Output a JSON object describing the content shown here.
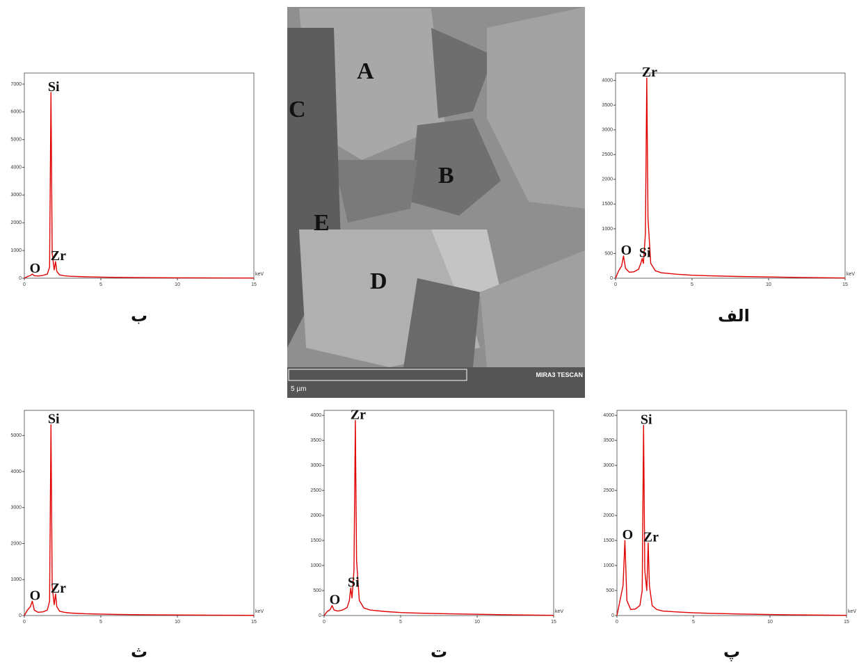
{
  "chart_data": [
    {
      "type": "line",
      "caption": "ب",
      "x_label": "keV",
      "color": "#e00000",
      "xlim": [
        0,
        15
      ],
      "xticks": [
        0,
        5,
        10,
        15
      ],
      "ylim": [
        0,
        7400
      ],
      "yticks": [
        0,
        1000,
        2000,
        3000,
        4000,
        5000,
        6000,
        7000
      ],
      "x": [
        0,
        0.2,
        0.4,
        0.52,
        0.65,
        0.9,
        1.2,
        1.5,
        1.65,
        1.74,
        1.82,
        1.95,
        2.04,
        2.12,
        2.3,
        2.6,
        3,
        4,
        5,
        6,
        8,
        10,
        12,
        15
      ],
      "values": [
        0,
        60,
        100,
        150,
        90,
        80,
        100,
        150,
        400,
        6700,
        900,
        300,
        600,
        250,
        120,
        90,
        70,
        50,
        40,
        30,
        20,
        15,
        10,
        5
      ],
      "annotations": [
        {
          "text": "O",
          "x": 0.52
        },
        {
          "text": "Si",
          "x": 1.74
        },
        {
          "text": "Zr",
          "x": 2.04
        }
      ]
    },
    {
      "type": "line",
      "caption": "الف",
      "x_label": "keV",
      "color": "#e00000",
      "xlim": [
        0,
        15
      ],
      "xticks": [
        0,
        5,
        10,
        15
      ],
      "ylim": [
        0,
        4150
      ],
      "yticks": [
        0,
        500,
        1000,
        1500,
        2000,
        2500,
        3000,
        3500,
        4000
      ],
      "x": [
        0,
        0.2,
        0.4,
        0.52,
        0.65,
        0.9,
        1.2,
        1.5,
        1.65,
        1.74,
        1.82,
        1.95,
        2.04,
        2.12,
        2.3,
        2.6,
        3,
        4,
        5,
        6,
        8,
        10,
        12,
        15
      ],
      "values": [
        0,
        150,
        250,
        450,
        200,
        120,
        130,
        180,
        300,
        400,
        300,
        900,
        4050,
        1200,
        300,
        150,
        110,
        80,
        60,
        50,
        35,
        25,
        15,
        5
      ],
      "annotations": [
        {
          "text": "O",
          "x": 0.52
        },
        {
          "text": "Si",
          "x": 1.74
        },
        {
          "text": "Zr",
          "x": 2.04
        }
      ]
    },
    {
      "type": "line",
      "caption": "ث",
      "x_label": "keV",
      "color": "#e00000",
      "xlim": [
        0,
        15
      ],
      "xticks": [
        0,
        5,
        10,
        15
      ],
      "ylim": [
        0,
        5700
      ],
      "yticks": [
        0,
        1000,
        2000,
        3000,
        4000,
        5000
      ],
      "x": [
        0,
        0.2,
        0.4,
        0.52,
        0.65,
        0.9,
        1.2,
        1.5,
        1.65,
        1.74,
        1.82,
        1.95,
        2.04,
        2.12,
        2.3,
        2.6,
        3,
        4,
        5,
        6,
        8,
        10,
        12,
        15
      ],
      "values": [
        0,
        150,
        250,
        400,
        150,
        90,
        100,
        150,
        400,
        5300,
        800,
        300,
        600,
        250,
        120,
        90,
        70,
        50,
        40,
        30,
        20,
        15,
        10,
        5
      ],
      "annotations": [
        {
          "text": "O",
          "x": 0.52
        },
        {
          "text": "Si",
          "x": 1.74
        },
        {
          "text": "Zr",
          "x": 2.04
        }
      ]
    },
    {
      "type": "line",
      "caption": "ت",
      "x_label": "keV",
      "color": "#e00000",
      "xlim": [
        0,
        15
      ],
      "xticks": [
        0,
        5,
        10,
        15
      ],
      "ylim": [
        0,
        4100
      ],
      "yticks": [
        0,
        500,
        1000,
        1500,
        2000,
        2500,
        3000,
        3500,
        4000
      ],
      "x": [
        0,
        0.2,
        0.4,
        0.52,
        0.65,
        0.9,
        1.2,
        1.5,
        1.65,
        1.74,
        1.82,
        1.95,
        2.04,
        2.12,
        2.3,
        2.6,
        3,
        4,
        5,
        6,
        8,
        10,
        12,
        15
      ],
      "values": [
        0,
        80,
        120,
        200,
        110,
        90,
        110,
        160,
        300,
        550,
        350,
        900,
        3900,
        1100,
        300,
        150,
        110,
        80,
        60,
        50,
        35,
        25,
        15,
        5
      ],
      "annotations": [
        {
          "text": "O",
          "x": 0.52
        },
        {
          "text": "Si",
          "x": 1.74
        },
        {
          "text": "Zr",
          "x": 2.04
        }
      ]
    },
    {
      "type": "line",
      "caption": "پ",
      "x_label": "keV",
      "color": "#e00000",
      "xlim": [
        0,
        15
      ],
      "xticks": [
        0,
        5,
        10,
        15
      ],
      "ylim": [
        0,
        4100
      ],
      "yticks": [
        0,
        500,
        1000,
        1500,
        2000,
        2500,
        3000,
        3500,
        4000
      ],
      "x": [
        0,
        0.2,
        0.4,
        0.52,
        0.65,
        0.9,
        1.2,
        1.5,
        1.65,
        1.74,
        1.82,
        1.95,
        2.04,
        2.12,
        2.3,
        2.6,
        3,
        4,
        5,
        6,
        8,
        10,
        12,
        15
      ],
      "values": [
        0,
        300,
        600,
        1500,
        300,
        120,
        130,
        200,
        500,
        3800,
        900,
        500,
        1450,
        600,
        200,
        120,
        90,
        70,
        55,
        45,
        30,
        20,
        12,
        5
      ],
      "annotations": [
        {
          "text": "O",
          "x": 0.52
        },
        {
          "text": "Si",
          "x": 1.74
        },
        {
          "text": "Zr",
          "x": 2.04
        }
      ]
    }
  ],
  "image": {
    "labels": [
      "A",
      "B",
      "C",
      "D",
      "E"
    ],
    "scale_bar": "5 µm",
    "instrument": "MIRA3 TESCAN"
  }
}
